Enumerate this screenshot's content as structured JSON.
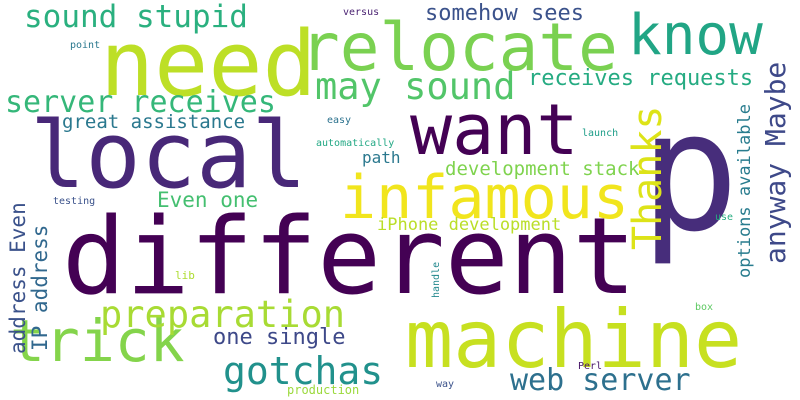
{
  "words": [
    {
      "text": "different",
      "color": "#440154"
    },
    {
      "text": "p",
      "color": "#472d7b"
    },
    {
      "text": "machine",
      "color": "#c7e020"
    },
    {
      "text": "need",
      "color": "#bddf26"
    },
    {
      "text": "local",
      "color": "#482878"
    },
    {
      "text": "want",
      "color": "#440154"
    },
    {
      "text": "relocate",
      "color": "#7ad151"
    },
    {
      "text": "infamous",
      "color": "#f1e51d"
    },
    {
      "text": "know",
      "color": "#21a585"
    },
    {
      "text": "trick",
      "color": "#84d44b"
    },
    {
      "text": "sound stupid",
      "color": "#2ab07f"
    },
    {
      "text": "may sound",
      "color": "#52c569"
    },
    {
      "text": "server receives",
      "color": "#35b779"
    },
    {
      "text": "preparation",
      "color": "#a8db34"
    },
    {
      "text": "Thanks",
      "color": "#dde318"
    },
    {
      "text": "gotchas",
      "color": "#21918c"
    },
    {
      "text": "web server",
      "color": "#2d708e"
    },
    {
      "text": "anyway Maybe",
      "color": "#3e4989"
    },
    {
      "text": "somehow sees",
      "color": "#3b528b"
    },
    {
      "text": "receives requests",
      "color": "#25ab82"
    },
    {
      "text": "great assistance",
      "color": "#2a788e"
    },
    {
      "text": "development stack",
      "color": "#7fd34e"
    },
    {
      "text": "Even one",
      "color": "#44bf70"
    },
    {
      "text": "iPhone development",
      "color": "#bade28"
    },
    {
      "text": "address Even",
      "color": "#3b528b"
    },
    {
      "text": "IP address",
      "color": "#31688e"
    },
    {
      "text": "one single",
      "color": "#3e4989"
    },
    {
      "text": "options available",
      "color": "#287c8e"
    },
    {
      "text": "path",
      "color": "#2a788e"
    },
    {
      "text": "versus",
      "color": "#481f70"
    },
    {
      "text": "point",
      "color": "#2a788e"
    },
    {
      "text": "easy",
      "color": "#2c728e"
    },
    {
      "text": "automatically",
      "color": "#22a884"
    },
    {
      "text": "launch",
      "color": "#1f9e89"
    },
    {
      "text": "testing",
      "color": "#3b528b"
    },
    {
      "text": "use",
      "color": "#27ad81"
    },
    {
      "text": "lib",
      "color": "#addc30"
    },
    {
      "text": "handle",
      "color": "#23898e"
    },
    {
      "text": "box",
      "color": "#5ec962"
    },
    {
      "text": "Perl",
      "color": "#481668"
    },
    {
      "text": "way",
      "color": "#3b528b"
    },
    {
      "text": "production",
      "color": "#9bd93c"
    }
  ]
}
